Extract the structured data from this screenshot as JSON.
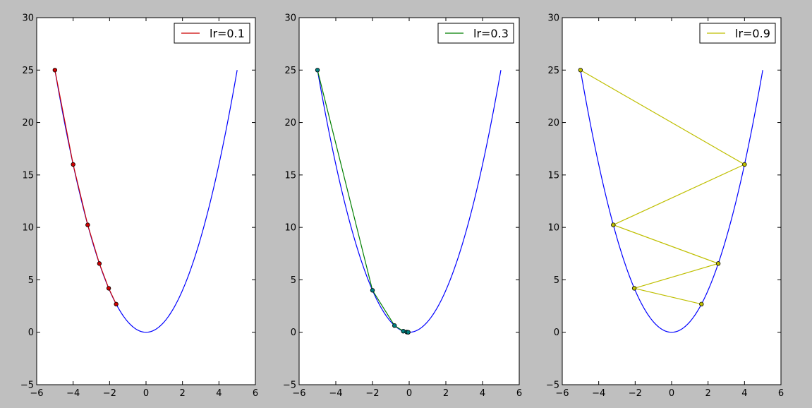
{
  "chart_data": [
    {
      "type": "line",
      "title": "",
      "xlabel": "",
      "ylabel": "",
      "xlim": [
        -6,
        6
      ],
      "ylim": [
        -5,
        30
      ],
      "xticks": [
        -6,
        -4,
        -2,
        0,
        2,
        4,
        6
      ],
      "yticks": [
        -5,
        0,
        5,
        10,
        15,
        20,
        25,
        30
      ],
      "grid": false,
      "legend_position": "top-right",
      "curve": {
        "expression": "y = x^2",
        "x_range": [
          -5,
          5
        ],
        "color": "#0000ff"
      },
      "series": [
        {
          "name": "lr=0.1",
          "color": "#cc0000",
          "marker_color": "#cc0000",
          "x": [
            -5,
            -4,
            -3.2,
            -2.56,
            -2.048,
            -1.6384
          ],
          "y": [
            25,
            16,
            10.24,
            6.5536,
            4.1943,
            2.6844
          ]
        }
      ]
    },
    {
      "type": "line",
      "title": "",
      "xlabel": "",
      "ylabel": "",
      "xlim": [
        -6,
        6
      ],
      "ylim": [
        -5,
        30
      ],
      "xticks": [
        -6,
        -4,
        -2,
        0,
        2,
        4,
        6
      ],
      "yticks": [
        -5,
        0,
        5,
        10,
        15,
        20,
        25,
        30
      ],
      "grid": false,
      "legend_position": "top-right",
      "curve": {
        "expression": "y = x^2",
        "x_range": [
          -5,
          5
        ],
        "color": "#0000ff"
      },
      "series": [
        {
          "name": "lr=0.3",
          "color": "#007f00",
          "marker_color": "#007f7f",
          "x": [
            -5,
            -2,
            -0.8,
            -0.32,
            -0.128,
            -0.0512
          ],
          "y": [
            25,
            4,
            0.64,
            0.1024,
            0.0164,
            0.0026
          ]
        }
      ]
    },
    {
      "type": "line",
      "title": "",
      "xlabel": "",
      "ylabel": "",
      "xlim": [
        -6,
        6
      ],
      "ylim": [
        -5,
        30
      ],
      "xticks": [
        -6,
        -4,
        -2,
        0,
        2,
        4,
        6
      ],
      "yticks": [
        -5,
        0,
        5,
        10,
        15,
        20,
        25,
        30
      ],
      "grid": false,
      "legend_position": "top-right",
      "curve": {
        "expression": "y = x^2",
        "x_range": [
          -5,
          5
        ],
        "color": "#0000ff"
      },
      "series": [
        {
          "name": "lr=0.9",
          "color": "#bfbf00",
          "marker_color": "#bfbf00",
          "x": [
            -5,
            4,
            -3.2,
            2.56,
            -2.048,
            1.6384
          ],
          "y": [
            25,
            16,
            10.24,
            6.5536,
            4.1943,
            2.6844
          ]
        }
      ]
    }
  ]
}
